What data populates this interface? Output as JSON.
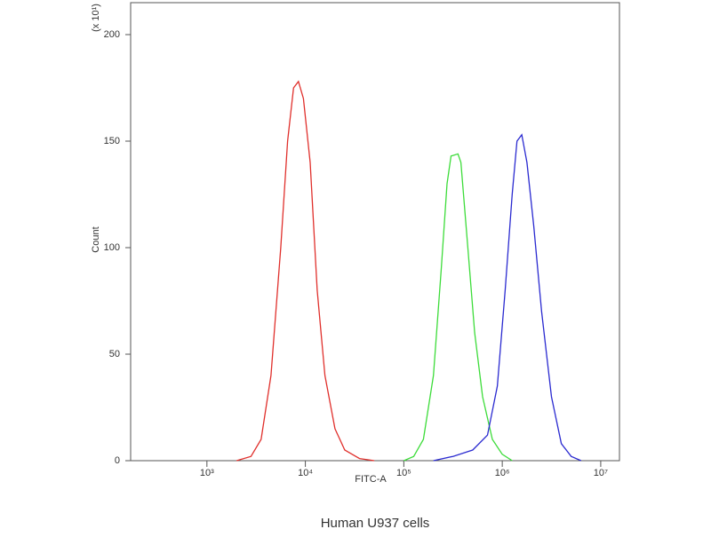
{
  "chart_data": {
    "type": "line",
    "caption": "Human U937 cells",
    "x_label": "FITC-A",
    "y_label": "Count",
    "y_unit": "(x 10¹)",
    "xscale": "log",
    "xlim": [
      168,
      15500000
    ],
    "ylim": [
      0,
      215
    ],
    "xticks": [
      {
        "value": 1000,
        "label": "10³"
      },
      {
        "value": 10000,
        "label": "10⁴"
      },
      {
        "value": 100000,
        "label": "10⁵"
      },
      {
        "value": 1000000,
        "label": "10⁶"
      },
      {
        "value": 10000000,
        "label": "10⁷"
      }
    ],
    "yticks": [
      0,
      50,
      100,
      150,
      200
    ],
    "series": [
      {
        "color": "#e0302c",
        "x": [
          2000,
          2800,
          3550,
          4470,
          5620,
          6600,
          7590,
          8510,
          9550,
          11200,
          13200,
          15800,
          20000,
          25100,
          35500,
          50100
        ],
        "values": [
          0,
          2,
          10,
          40,
          100,
          150,
          175,
          178,
          170,
          140,
          80,
          40,
          15,
          5,
          1,
          0
        ]
      },
      {
        "color": "#3ddc3a",
        "x": [
          100000,
          126000,
          158000,
          200000,
          240000,
          275000,
          302000,
          355000,
          380000,
          447000,
          525000,
          631000,
          794000,
          1000000,
          1260000
        ],
        "values": [
          0,
          2,
          10,
          40,
          90,
          130,
          143,
          144,
          140,
          100,
          60,
          30,
          10,
          3,
          0
        ]
      },
      {
        "color": "#2a2ad0",
        "x": [
          200000,
          316000,
          501000,
          708000,
          891000,
          1070000,
          1260000,
          1410000,
          1580000,
          1780000,
          2090000,
          2510000,
          3160000,
          3980000,
          5010000,
          6310000
        ],
        "values": [
          0,
          2,
          5,
          12,
          35,
          80,
          125,
          150,
          153,
          140,
          110,
          70,
          30,
          8,
          2,
          0
        ]
      }
    ]
  }
}
